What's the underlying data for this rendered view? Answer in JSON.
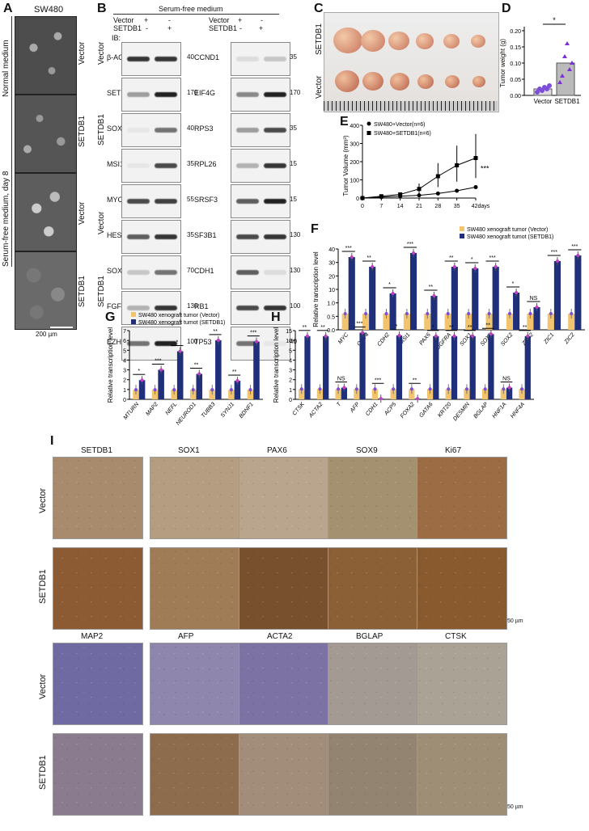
{
  "panelA": {
    "label": "A",
    "title": "SW480",
    "left_labels": [
      "Normal medium",
      "Serum-free medium, day 8"
    ],
    "row_labels": [
      "Vector",
      "SETDB1",
      "Vector",
      "SETDB1"
    ],
    "scalebar": "200 µm"
  },
  "panelB": {
    "label": "B",
    "header": "Serum-free medium",
    "ib": "IB:",
    "lane_rows": [
      {
        "name": "Vector",
        "marks": [
          "+",
          "-"
        ]
      },
      {
        "name": "SETDB1",
        "marks": [
          "-",
          "+"
        ]
      }
    ],
    "group_labels": [
      "Vector",
      "SETDB1",
      "Vector",
      "SETDB1"
    ],
    "left_column": [
      {
        "protein": "β-ACT",
        "mw": "40"
      },
      {
        "protein": "SETDB1",
        "mw": "170"
      },
      {
        "protein": "SOX1",
        "mw": "40"
      },
      {
        "protein": "MSI1",
        "mw": "35"
      },
      {
        "protein": "MYC",
        "mw": "55"
      },
      {
        "protein": "HES1",
        "mw": "35"
      },
      {
        "protein": "SOX9",
        "mw": "70"
      },
      {
        "protein": "FGFR1",
        "mw": "130"
      },
      {
        "protein": "EZH2",
        "mw": "100"
      }
    ],
    "right_column": [
      {
        "protein": "CCND1",
        "mw": "35"
      },
      {
        "protein": "EIF4G",
        "mw": "170"
      },
      {
        "protein": "RPS3",
        "mw": "35"
      },
      {
        "protein": "RPL26",
        "mw": "15"
      },
      {
        "protein": "SRSF3",
        "mw": "15"
      },
      {
        "protein": "SF3B1",
        "mw": "130"
      },
      {
        "protein": "CDH1",
        "mw": "130"
      },
      {
        "protein": "RB1",
        "mw": "100"
      },
      {
        "protein": "TP53",
        "mw": "40"
      }
    ]
  },
  "panelC": {
    "label": "C",
    "rows": [
      "SETDB1",
      "Vector"
    ]
  },
  "panelD": {
    "label": "D",
    "ylabel": "Tumor weight (g)",
    "categories": [
      "Vector",
      "SETDB1"
    ],
    "sig": "*"
  },
  "panelE": {
    "label": "E",
    "ylabel": "Tumor Volume (mm³)",
    "legend": [
      "SW480+Vector(n=6)",
      "SW480+SETDB1(n=6)"
    ],
    "x_ticks": [
      "0",
      "7",
      "14",
      "21",
      "28",
      "35",
      "42days"
    ],
    "y_ticks": [
      "0",
      "100",
      "200",
      "300",
      "400"
    ],
    "sig": "***"
  },
  "panelF": {
    "label": "F",
    "ylabel": "Relative transcription level",
    "legend": [
      "SW480 xenograft tumor (Vector)",
      "SW480 xenograft tumot (SETDB1)"
    ],
    "genes": [
      "MYC",
      "OCT4",
      "CDH2",
      "MSI1",
      "PAX6",
      "PDGFRA",
      "SOX1",
      "SOX9",
      "SOX2",
      "ZEB2",
      "ZIC1",
      "ZIC2"
    ],
    "sig": [
      "***",
      "**",
      "*",
      "***",
      "**",
      "**",
      "*",
      "***",
      "*",
      "NS",
      "***",
      "***"
    ],
    "y_ticks": [
      "0.0",
      "0.5",
      "1.0",
      "10",
      "20",
      "30",
      "40"
    ]
  },
  "panelG": {
    "label": "G",
    "ylabel": "Relative transcription level",
    "legend": [
      "SW480 xenograft tumor (Vector)",
      "SW480 xenograft tumot (SETDB1)"
    ],
    "genes": [
      "MTURN",
      "MAP2",
      "NEFL",
      "NEUROD1",
      "TUBB3",
      "SYNJ1",
      "BDNF1"
    ],
    "sig": [
      "*",
      "***",
      "*",
      "**",
      "**",
      "**",
      "***"
    ],
    "y_ticks": [
      "0",
      "1",
      "2",
      "3",
      "4",
      "5",
      "6",
      "7"
    ]
  },
  "panelH": {
    "label": "H",
    "ylabel": "Relative transcription level",
    "genes": [
      "CTSK",
      "ACTA2",
      "T",
      "AFP",
      "CDH1",
      "ACP5",
      "FOXA2",
      "GATA6",
      "KRT20",
      "DESMIN",
      "BGLAP",
      "HNF1A",
      "HNF4A"
    ],
    "sig": [
      "**",
      "**",
      "NS",
      "***",
      "***",
      "*",
      "**",
      "*",
      "**",
      "**",
      "**",
      "NS",
      "**"
    ],
    "y_ticks": [
      "0",
      "1",
      "2",
      "3",
      "4",
      "5",
      "10",
      "15"
    ]
  },
  "panelI": {
    "label": "I",
    "top_headers": [
      "SETDB1",
      "SOX1",
      "PAX6",
      "SOX9",
      "Ki67"
    ],
    "bottom_headers": [
      "MAP2",
      "AFP",
      "ACTA2",
      "BGLAP",
      "CTSK"
    ],
    "row_labels": [
      "Vector",
      "SETDB1",
      "Vector",
      "SETDB1"
    ],
    "scalebar": "50 µm"
  },
  "colors": {
    "vector": "#f2c46d",
    "setdb1": "#1f2f7a",
    "dot_vec": "#7c4dd8",
    "dot_setdb": "#c040c0"
  }
}
